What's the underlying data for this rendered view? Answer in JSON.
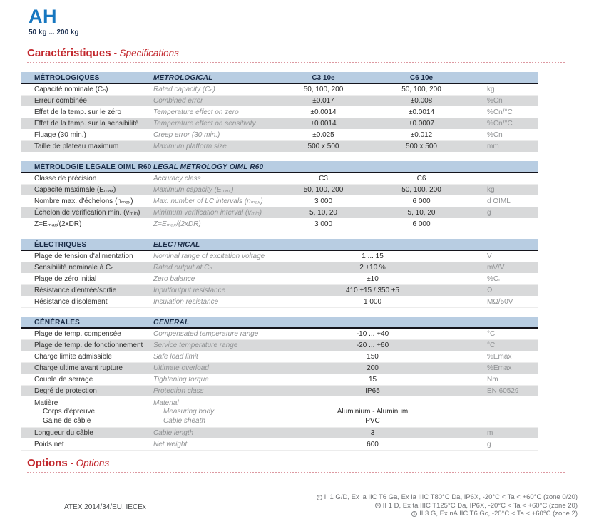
{
  "page": {
    "title": "AH",
    "subtitle": "50 kg ... 200 kg"
  },
  "sections": {
    "specifications": {
      "fr": "Caractéristiques",
      "en": " - Specifications"
    },
    "options": {
      "fr": "Options",
      "en": " - Options"
    }
  },
  "icons": {
    "atex_ex": "ε"
  },
  "spec_tables": [
    {
      "id": "metrological",
      "header_fr": "MÉTROLOGIQUES",
      "header_en": "METROLOGICAL",
      "col_headers": {
        "c3": "C3 10e",
        "c6": "C6 10e"
      },
      "rows": [
        {
          "fr": "Capacité nominale (Cₙ)",
          "en": "Rated capacity (Cₙ)",
          "c3": "50, 100, 200",
          "c6": "50, 100, 200",
          "unit": "kg"
        },
        {
          "fr": "Erreur combinée",
          "en": "Combined error",
          "c3": "±0.017",
          "c6": "±0.008",
          "unit": "%Cn"
        },
        {
          "fr": "Effet de la temp. sur le zéro",
          "en": "Temperature effect on zero",
          "c3": "±0.0014",
          "c6": "±0.0014",
          "unit": "%Cn/°C"
        },
        {
          "fr": "Effet de la temp. sur la sensibilité",
          "en": "Temperature effect on sensitivity",
          "c3": "±0.0014",
          "c6": "±0.0007",
          "unit": "%Cn/°C"
        },
        {
          "fr": "Fluage (30 min.)",
          "en": "Creep error (30 min.)",
          "c3": "±0.025",
          "c6": "±0.012",
          "unit": "%Cn"
        },
        {
          "fr": "Taille de plateau maximum",
          "en": "Maximum platform size",
          "c3": "500 x 500",
          "c6": "500 x 500",
          "unit": "mm"
        }
      ]
    },
    {
      "id": "legal-metrology",
      "header_fr": "MÉTROLOGIE LÉGALE OIML R60",
      "header_en": "LEGAL METROLOGY OIML R60",
      "col_headers": null,
      "rows": [
        {
          "fr": "Classe de précision",
          "en": "Accuracy class",
          "c3": "C3",
          "c6": "C6",
          "unit": ""
        },
        {
          "fr": "Capacité maximale (Eₘₐₓ)",
          "en": "Maximum capacity (Eₘₐₓ)",
          "c3": "50, 100, 200",
          "c6": "50, 100, 200",
          "unit": "kg"
        },
        {
          "fr": "Nombre max. d'échelons (nₘₐₓ)",
          "en": "Max. number of LC intervals (nₘₐₓ)",
          "c3": "3 000",
          "c6": "6 000",
          "unit": "d OIML"
        },
        {
          "fr": "Échelon de vérification min. (vₘᵢₙ)",
          "en": "Minimum verification interval (vₘᵢₙ)",
          "c3": "5, 10, 20",
          "c6": "5, 10, 20",
          "unit": "g"
        },
        {
          "fr": "Z=Eₘₐₓ/(2xDR)",
          "en": "Z=Eₘₐₓ/(2xDR)",
          "c3": "3 000",
          "c6": "6 000",
          "unit": ""
        }
      ]
    },
    {
      "id": "electrical",
      "header_fr": "ÉLECTRIQUES",
      "header_en": "ELECTRICAL",
      "col_headers": null,
      "rows": [
        {
          "fr": "Plage de tension d'alimentation",
          "en": "Nominal range of excitation voltage",
          "merged": "1 ... 15",
          "unit": "V"
        },
        {
          "fr": "Sensibilité nominale à Cₙ",
          "en": "Rated output at Cₙ",
          "merged": "2 ±10 %",
          "unit": "mV/V"
        },
        {
          "fr": "Plage de zéro initial",
          "en": "Zero balance",
          "merged": "±10",
          "unit": "%Cₙ"
        },
        {
          "fr": "Résistance d'entrée/sortie",
          "en": "Input/output resistance",
          "merged": "410 ±15 / 350 ±5",
          "unit": "Ω"
        },
        {
          "fr": "Résistance d'isolement",
          "en": "Insulation resistance",
          "merged": "1 000",
          "unit": "MΩ/50V"
        }
      ]
    },
    {
      "id": "general",
      "header_fr": "GÉNÉRALES",
      "header_en": "GENERAL",
      "col_headers": null,
      "rows": [
        {
          "fr": "Plage de temp. compensée",
          "en": "Compensated temperature range",
          "merged": "-10 ... +40",
          "unit": "°C"
        },
        {
          "fr": "Plage de temp. de fonctionnement",
          "en": "Service temperature range",
          "merged": "-20 ... +60",
          "unit": "°C"
        },
        {
          "fr": "Charge limite admissible",
          "en": "Safe load limit",
          "merged": "150",
          "unit": "%Emax"
        },
        {
          "fr": "Charge ultime avant rupture",
          "en": "Ultimate overload",
          "merged": "200",
          "unit": "%Emax"
        },
        {
          "fr": "Couple de serrage",
          "en": "Tightening torque",
          "merged": "15",
          "unit": "Nm"
        },
        {
          "fr": "Degré de protection",
          "en": "Protection class",
          "merged": "IP65",
          "unit": "EN 60529"
        },
        {
          "lines": [
            {
              "fr": "Matière",
              "en": "Material",
              "value": "",
              "indent": false
            },
            {
              "fr": "Corps d'épreuve",
              "en": "Measuring body",
              "value": "Aluminium - Aluminum",
              "indent": true
            },
            {
              "fr": "Gaine de câble",
              "en": "Cable sheath",
              "value": "PVC",
              "indent": true
            }
          ]
        },
        {
          "fr": "Longueur du câble",
          "en": "Cable length",
          "merged": "3",
          "unit": "m"
        },
        {
          "fr": "Poids net",
          "en": "Net weight",
          "merged": "600",
          "unit": "g"
        }
      ]
    }
  ],
  "certifications": {
    "label": "ATEX 2014/34/EU, IECEx",
    "lines": [
      "II 1 G/D, Ex ia IIC T6 Ga, Ex ia IIIC T80°C Da, IP6X, -20°C < Ta < +60°C (zone 0/20)",
      "II 1 D, Ex ta IIIC T125°C Da, IP6X, -20°C < Ta < +60°C (zone 20)",
      "II 3 G, Ex nA IIC T6 Gc, -20°C < Ta < +60°C (zone 2)"
    ]
  }
}
